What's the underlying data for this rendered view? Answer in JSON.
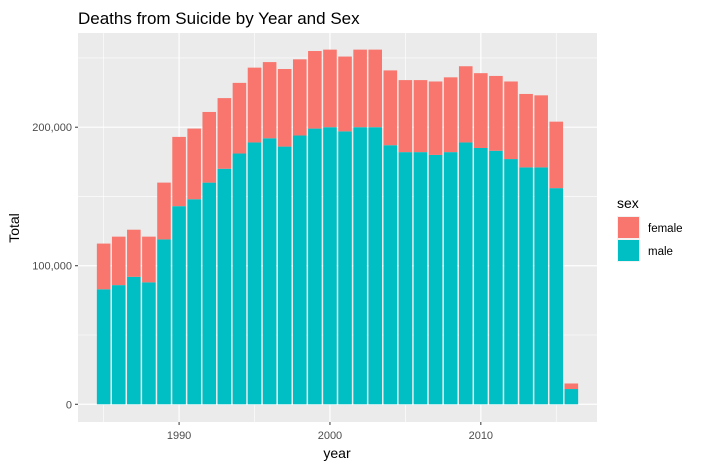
{
  "chart_data": {
    "type": "bar",
    "stacked": true,
    "title": "Deaths from Suicide by Year and Sex",
    "xlabel": "year",
    "ylabel": "Total",
    "x_ticks": [
      1990,
      2000,
      2010
    ],
    "y_ticks": [
      0,
      100000,
      200000
    ],
    "y_tick_labels": [
      "0",
      "100,000",
      "200,000"
    ],
    "xlim": [
      1983.3,
      2017.7
    ],
    "ylim": [
      -12800,
      268000
    ],
    "grid": true,
    "legend_position": "right",
    "legend_title": "sex",
    "categories": [
      1985,
      1986,
      1987,
      1988,
      1989,
      1990,
      1991,
      1992,
      1993,
      1994,
      1995,
      1996,
      1997,
      1998,
      1999,
      2000,
      2001,
      2002,
      2003,
      2004,
      2005,
      2006,
      2007,
      2008,
      2009,
      2010,
      2011,
      2012,
      2013,
      2014,
      2015,
      2016
    ],
    "series": [
      {
        "name": "male",
        "color": "#00BFC4",
        "values": [
          83000,
          86000,
          92000,
          88000,
          119000,
          143000,
          148000,
          160000,
          170000,
          181000,
          189000,
          192000,
          186000,
          194000,
          199000,
          200000,
          197000,
          200000,
          200000,
          187000,
          182000,
          182000,
          180000,
          182000,
          189000,
          185000,
          183000,
          177000,
          171000,
          171000,
          156000,
          11000
        ]
      },
      {
        "name": "female",
        "color": "#F8766D",
        "values": [
          33000,
          35000,
          34000,
          33000,
          41000,
          50000,
          51000,
          51000,
          51000,
          51000,
          54000,
          55000,
          56000,
          55000,
          56000,
          56000,
          54000,
          56000,
          56000,
          54000,
          52000,
          52000,
          53000,
          54000,
          55000,
          54000,
          54000,
          56000,
          53000,
          52000,
          48000,
          4000
        ]
      }
    ]
  }
}
